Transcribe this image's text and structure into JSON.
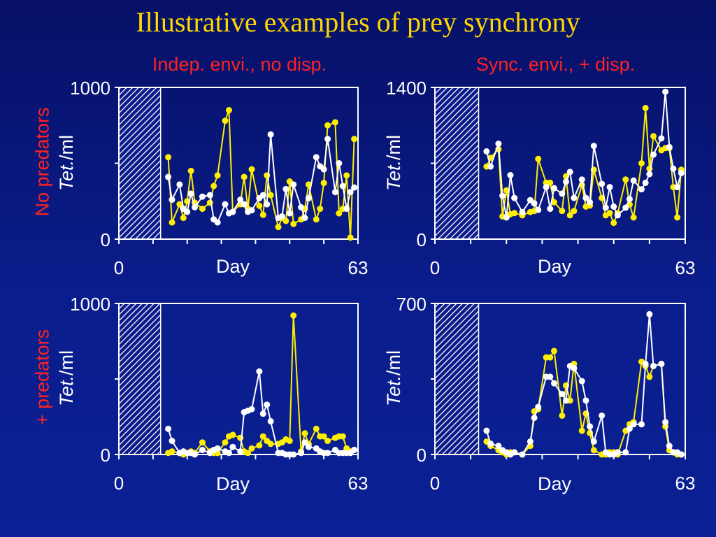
{
  "title": "Illustrative examples of prey synchrony",
  "col_titles": [
    "Indep. envi., no disp.",
    "Sync. envi., + disp."
  ],
  "row_titles": [
    "No predators",
    "+ predators"
  ],
  "colors": {
    "series_a": "#ffee00",
    "series_b": "#ffffff",
    "title": "#ffd700",
    "labels": "#ff2222"
  },
  "chart_data": [
    {
      "type": "line",
      "panel": "top-left",
      "xlabel": "Day",
      "ylabel": "Tet./ml",
      "xlim": [
        0,
        63
      ],
      "ylim": [
        0,
        1000
      ],
      "x_tick_labels": [
        "0",
        "63"
      ],
      "y_tick_labels": [
        "0",
        "1000"
      ],
      "shaded_x_range": [
        0,
        11
      ],
      "series": [
        {
          "color": "#ffee00",
          "x": [
            13,
            14,
            16,
            17,
            18,
            19,
            20,
            22,
            24,
            25,
            26,
            28,
            29,
            30,
            32,
            33,
            34,
            35,
            37,
            38,
            39,
            40,
            42,
            43,
            44,
            45,
            46,
            48,
            49,
            50,
            52,
            53,
            54,
            55,
            57,
            58,
            59,
            60,
            61,
            62
          ],
          "y": [
            540,
            110,
            230,
            140,
            250,
            450,
            240,
            200,
            240,
            350,
            420,
            780,
            850,
            180,
            230,
            410,
            200,
            460,
            220,
            160,
            420,
            290,
            80,
            140,
            120,
            380,
            100,
            130,
            200,
            360,
            130,
            200,
            370,
            750,
            770,
            170,
            200,
            420,
            10,
            660
          ]
        },
        {
          "color": "#ffffff",
          "x": [
            13,
            14,
            16,
            17,
            18,
            19,
            20,
            22,
            24,
            25,
            26,
            28,
            29,
            30,
            32,
            33,
            34,
            35,
            37,
            38,
            39,
            40,
            42,
            43,
            44,
            45,
            46,
            48,
            49,
            50,
            52,
            53,
            54,
            55,
            57,
            58,
            59,
            60,
            61,
            62
          ],
          "y": [
            410,
            260,
            360,
            200,
            180,
            300,
            210,
            280,
            290,
            130,
            110,
            230,
            170,
            180,
            260,
            230,
            180,
            190,
            270,
            290,
            230,
            690,
            140,
            150,
            330,
            170,
            360,
            210,
            140,
            270,
            540,
            480,
            460,
            660,
            310,
            500,
            350,
            200,
            310,
            340
          ]
        }
      ]
    },
    {
      "type": "line",
      "panel": "top-right",
      "xlabel": "Day",
      "ylabel": "Tet./ml",
      "xlim": [
        0,
        63
      ],
      "ylim": [
        0,
        1400
      ],
      "x_tick_labels": [
        "0",
        "63"
      ],
      "y_tick_labels": [
        "0",
        "1400"
      ],
      "shaded_x_range": [
        0,
        11
      ],
      "series": [
        {
          "color": "#ffee00",
          "x": [
            13,
            14,
            16,
            17,
            18,
            19,
            20,
            22,
            24,
            25,
            26,
            28,
            29,
            30,
            32,
            33,
            34,
            35,
            37,
            38,
            39,
            40,
            42,
            43,
            44,
            45,
            46,
            48,
            49,
            50,
            52,
            53,
            54,
            55,
            57,
            58,
            59,
            60,
            61,
            62
          ],
          "y": [
            670,
            750,
            830,
            210,
            450,
            230,
            240,
            220,
            250,
            260,
            740,
            520,
            520,
            340,
            260,
            580,
            220,
            260,
            500,
            300,
            310,
            640,
            380,
            220,
            240,
            150,
            240,
            550,
            320,
            200,
            700,
            1210,
            650,
            950,
            820,
            840,
            840,
            480,
            200,
            640
          ]
        },
        {
          "color": "#ffffff",
          "x": [
            13,
            14,
            16,
            17,
            18,
            19,
            20,
            22,
            24,
            25,
            26,
            28,
            29,
            30,
            32,
            33,
            34,
            35,
            37,
            38,
            39,
            40,
            42,
            43,
            44,
            45,
            46,
            48,
            49,
            50,
            52,
            53,
            54,
            55,
            57,
            58,
            59,
            60,
            61,
            62
          ],
          "y": [
            810,
            670,
            880,
            400,
            200,
            590,
            380,
            250,
            360,
            330,
            270,
            480,
            280,
            470,
            420,
            530,
            620,
            380,
            550,
            380,
            340,
            860,
            510,
            290,
            480,
            300,
            220,
            290,
            370,
            540,
            460,
            520,
            600,
            780,
            930,
            1360,
            850,
            650,
            480,
            610
          ]
        }
      ]
    },
    {
      "type": "line",
      "panel": "bottom-left",
      "xlabel": "Day",
      "ylabel": "Tet./ml",
      "xlim": [
        0,
        63
      ],
      "ylim": [
        0,
        1000
      ],
      "x_tick_labels": [
        "0",
        "63"
      ],
      "y_tick_labels": [
        "0",
        "1000"
      ],
      "shaded_x_range": [
        0,
        11
      ],
      "series": [
        {
          "color": "#ffee00",
          "x": [
            13,
            14,
            16,
            17,
            18,
            19,
            20,
            22,
            24,
            25,
            26,
            28,
            29,
            30,
            32,
            33,
            34,
            35,
            37,
            38,
            39,
            40,
            42,
            43,
            44,
            45,
            46,
            48,
            49,
            50,
            52,
            53,
            54,
            55,
            57,
            58,
            59,
            60,
            61,
            62
          ],
          "y": [
            10,
            20,
            10,
            0,
            10,
            20,
            10,
            80,
            20,
            10,
            10,
            80,
            120,
            130,
            110,
            20,
            10,
            40,
            60,
            120,
            90,
            70,
            70,
            80,
            100,
            90,
            920,
            20,
            140,
            70,
            170,
            120,
            120,
            90,
            110,
            120,
            120,
            40,
            20,
            30
          ]
        },
        {
          "color": "#ffffff",
          "x": [
            13,
            14,
            16,
            17,
            18,
            19,
            20,
            22,
            24,
            25,
            26,
            28,
            29,
            30,
            32,
            33,
            34,
            35,
            37,
            38,
            39,
            40,
            42,
            43,
            44,
            45,
            46,
            48,
            49,
            50,
            52,
            53,
            54,
            55,
            57,
            58,
            59,
            60,
            61,
            62
          ],
          "y": [
            170,
            90,
            10,
            20,
            10,
            10,
            0,
            30,
            10,
            30,
            40,
            20,
            10,
            50,
            20,
            280,
            290,
            300,
            550,
            270,
            330,
            220,
            10,
            10,
            0,
            0,
            0,
            10,
            80,
            50,
            40,
            20,
            10,
            10,
            30,
            10,
            10,
            10,
            10,
            30
          ]
        }
      ]
    },
    {
      "type": "line",
      "panel": "bottom-right",
      "xlabel": "Day",
      "ylabel": "Tet./ml",
      "xlim": [
        0,
        63
      ],
      "ylim": [
        0,
        700
      ],
      "x_tick_labels": [
        "0",
        "63"
      ],
      "y_tick_labels": [
        "0",
        "700"
      ],
      "shaded_x_range": [
        0,
        11
      ],
      "series": [
        {
          "color": "#ffee00",
          "x": [
            13,
            14,
            16,
            17,
            18,
            19,
            20,
            22,
            24,
            25,
            26,
            28,
            29,
            30,
            32,
            33,
            34,
            35,
            37,
            38,
            39,
            40,
            42,
            43,
            44,
            45,
            46,
            48,
            49,
            50,
            52,
            53,
            54,
            55,
            57,
            58,
            59,
            60,
            61,
            62
          ],
          "y": [
            60,
            40,
            20,
            10,
            0,
            10,
            10,
            0,
            40,
            200,
            210,
            450,
            450,
            480,
            180,
            320,
            250,
            420,
            110,
            190,
            100,
            20,
            0,
            0,
            10,
            10,
            0,
            110,
            140,
            150,
            430,
            410,
            360,
            410,
            420,
            130,
            20,
            10,
            0,
            0
          ]
        },
        {
          "color": "#ffffff",
          "x": [
            13,
            14,
            16,
            17,
            18,
            19,
            20,
            22,
            24,
            25,
            26,
            28,
            29,
            30,
            32,
            33,
            34,
            35,
            37,
            38,
            39,
            40,
            42,
            43,
            44,
            45,
            46,
            48,
            49,
            50,
            52,
            53,
            54,
            55,
            57,
            58,
            59,
            60,
            61,
            62
          ],
          "y": [
            110,
            50,
            40,
            20,
            10,
            0,
            10,
            0,
            60,
            170,
            220,
            360,
            360,
            330,
            280,
            250,
            410,
            400,
            340,
            250,
            130,
            60,
            180,
            10,
            0,
            0,
            10,
            10,
            120,
            140,
            140,
            420,
            650,
            410,
            420,
            150,
            40,
            10,
            10,
            0
          ]
        }
      ]
    }
  ]
}
